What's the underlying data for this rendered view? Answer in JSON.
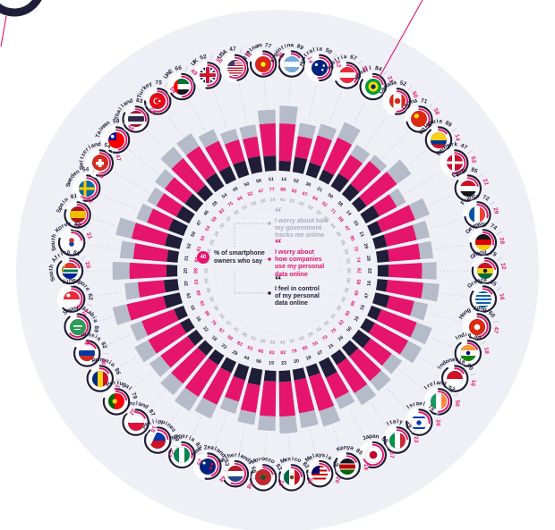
{
  "colors": {
    "pink": "#e5146d",
    "navy": "#1f1d38",
    "grey_bar": "#b5bbc9",
    "grey_text": "#a6aec2",
    "circle_bg": "#eef0f5",
    "connector": "#c7ccd8"
  },
  "center": {
    "badge_value": "40",
    "intro": "% of smartphone\nowners who say",
    "legend": [
      {
        "id": "government",
        "color": "#a6aec2",
        "text": "I worry about how\nmy government\ntracks me online"
      },
      {
        "id": "companies",
        "color": "#e5146d",
        "text": "I worry about\nhow companies\nuse my personal\ndata online"
      },
      {
        "id": "control",
        "color": "#1f1d38",
        "text": "I feel in control\nof my personal\ndata online"
      }
    ]
  },
  "chart_data": {
    "type": "radial-bar",
    "unit": "%",
    "layout": "countries alphabetical clockwise from top; per country label shows 'worry_companies | feel_in_control'",
    "legend_series": [
      {
        "key": "worry_government_est",
        "label": "I worry about how my government tracks me online",
        "color": "#b5bbc9"
      },
      {
        "key": "worry_companies",
        "label": "I worry about how companies use my personal data online",
        "color": "#e5146d"
      },
      {
        "key": "feel_in_control",
        "label": "I feel in control of my personal data online",
        "color": "#1f1d38"
      }
    ],
    "countries": [
      {
        "name": "Argentina",
        "flag": "argentina",
        "worry_companies": 89,
        "feel_in_control": 14,
        "worry_government_est": 44
      },
      {
        "name": "Australia",
        "flag": "australia",
        "worry_companies": 50,
        "feel_in_control": 52,
        "worry_government_est": 33
      },
      {
        "name": "Austria",
        "flag": "austria",
        "worry_companies": 67,
        "feel_in_control": 36,
        "worry_government_est": 30
      },
      {
        "name": "Brazil",
        "flag": "brazil",
        "worry_companies": 84,
        "feel_in_control": 21,
        "worry_government_est": 42
      },
      {
        "name": "Canada",
        "flag": "canada",
        "worry_companies": 52,
        "feel_in_control": 50,
        "worry_government_est": 30
      },
      {
        "name": "China",
        "flag": "china",
        "worry_companies": 71,
        "feel_in_control": 38,
        "worry_government_est": 20
      },
      {
        "name": "Colombia",
        "flag": "colombia",
        "worry_companies": 89,
        "feel_in_control": 14,
        "worry_government_est": 44
      },
      {
        "name": "Denmark",
        "flag": "denmark",
        "worry_companies": 47,
        "feel_in_control": 53,
        "worry_government_est": 26
      },
      {
        "name": "Egypt",
        "flag": "egypt",
        "worry_companies": 85,
        "feel_in_control": 21,
        "worry_government_est": 38
      },
      {
        "name": "France",
        "flag": "france",
        "worry_companies": 72,
        "feel_in_control": 29,
        "worry_government_est": 33
      },
      {
        "name": "Germany",
        "flag": "germany",
        "worry_companies": 74,
        "feel_in_control": 28,
        "worry_government_est": 32
      },
      {
        "name": "Ghana",
        "flag": "ghana",
        "worry_companies": 79,
        "feel_in_control": 22,
        "worry_government_est": 36
      },
      {
        "name": "Greece",
        "flag": "greece",
        "worry_companies": 85,
        "feel_in_control": 16,
        "worry_government_est": 40
      },
      {
        "name": "Hong Kong",
        "flag": "hongkong",
        "worry_companies": 60,
        "feel_in_control": 47,
        "worry_government_est": 35
      },
      {
        "name": "India",
        "flag": "india",
        "worry_companies": 90,
        "feel_in_control": 18,
        "worry_government_est": 40
      },
      {
        "name": "Indonesia",
        "flag": "indonesia",
        "worry_companies": 90,
        "feel_in_control": 16,
        "worry_government_est": 38
      },
      {
        "name": "Ireland",
        "flag": "ireland",
        "worry_companies": 62,
        "feel_in_control": 50,
        "worry_government_est": 31
      },
      {
        "name": "Israel",
        "flag": "israel",
        "worry_companies": 76,
        "feel_in_control": 26,
        "worry_government_est": 33
      },
      {
        "name": "Italy",
        "flag": "italy",
        "worry_companies": 79,
        "feel_in_control": 23,
        "worry_government_est": 35
      },
      {
        "name": "Japan",
        "flag": "japan",
        "worry_companies": 55,
        "feel_in_control": 67,
        "worry_government_est": 28
      },
      {
        "name": "Kenya",
        "flag": "kenya",
        "worry_companies": 85,
        "feel_in_control": 18,
        "worry_government_est": 40
      },
      {
        "name": "Malaysia",
        "flag": "malaysia",
        "worry_companies": 79,
        "feel_in_control": 20,
        "worry_government_est": 37
      },
      {
        "name": "Mexico",
        "flag": "mexico",
        "worry_companies": 82,
        "feel_in_control": 23,
        "worry_government_est": 42
      },
      {
        "name": "Morocco",
        "flag": "morocco",
        "worry_companies": 83,
        "feel_in_control": 19,
        "worry_government_est": 36
      },
      {
        "name": "Netherlands",
        "flag": "netherlands",
        "worry_companies": 66,
        "feel_in_control": 56,
        "worry_government_est": 30
      },
      {
        "name": "New Zealand",
        "flag": "newzealand",
        "worry_companies": 53,
        "feel_in_control": 44,
        "worry_government_est": 31
      },
      {
        "name": "Nigeria",
        "flag": "nigeria",
        "worry_companies": 83,
        "feel_in_control": 29,
        "worry_government_est": 38
      },
      {
        "name": "Philippines",
        "flag": "philippines",
        "worry_companies": 89,
        "feel_in_control": 23,
        "worry_government_est": 42
      },
      {
        "name": "Poland",
        "flag": "poland",
        "worry_companies": 87,
        "feel_in_control": 18,
        "worry_government_est": 37
      },
      {
        "name": "Portugal",
        "flag": "portugal",
        "worry_companies": 79,
        "feel_in_control": 22,
        "worry_government_est": 34
      },
      {
        "name": "Romania",
        "flag": "romania",
        "worry_companies": 86,
        "feel_in_control": 16,
        "worry_government_est": 38
      },
      {
        "name": "Russia",
        "flag": "russia",
        "worry_companies": 82,
        "feel_in_control": 16,
        "worry_government_est": 30
      },
      {
        "name": "Saudi Arabia",
        "flag": "saudiarabia",
        "worry_companies": 89,
        "feel_in_control": 63,
        "worry_government_est": 36
      },
      {
        "name": "Singapore",
        "flag": "singapore",
        "worry_companies": 62,
        "feel_in_control": 42,
        "worry_government_est": 33
      },
      {
        "name": "South Africa",
        "flag": "southafrica",
        "worry_companies": 88,
        "feel_in_control": 20,
        "worry_government_est": 42
      },
      {
        "name": "South Korea",
        "flag": "southkorea",
        "worry_companies": 80,
        "feel_in_control": 21,
        "worry_government_est": 33
      },
      {
        "name": "Spain",
        "flag": "spain",
        "worry_companies": 81,
        "feel_in_control": 52,
        "worry_government_est": 40
      },
      {
        "name": "Sweden",
        "flag": "sweden",
        "worry_companies": 54,
        "feel_in_control": 59,
        "worry_government_est": 28
      },
      {
        "name": "Switzerland",
        "flag": "switzerland",
        "worry_companies": 54,
        "feel_in_control": 47,
        "worry_government_est": 26
      },
      {
        "name": "Taiwan",
        "flag": "taiwan",
        "worry_companies": 59,
        "feel_in_control": 46,
        "worry_government_est": 30
      },
      {
        "name": "Thailand",
        "flag": "thailand",
        "worry_companies": 83,
        "feel_in_control": 28,
        "worry_government_est": 37
      },
      {
        "name": "Turkey",
        "flag": "turkey",
        "worry_companies": 75,
        "feel_in_control": 54,
        "worry_government_est": 38
      },
      {
        "name": "UAE",
        "flag": "uae",
        "worry_companies": 66,
        "feel_in_control": 49,
        "worry_government_est": 32
      },
      {
        "name": "UK",
        "flag": "uk",
        "worry_companies": 52,
        "feel_in_control": 50,
        "worry_government_est": 28
      },
      {
        "name": "USA",
        "flag": "usa",
        "worry_companies": 47,
        "feel_in_control": 58,
        "worry_government_est": 30
      },
      {
        "name": "Vietnam",
        "flag": "vietnam",
        "worry_companies": 77,
        "feel_in_control": 51,
        "worry_government_est": 34
      }
    ]
  }
}
